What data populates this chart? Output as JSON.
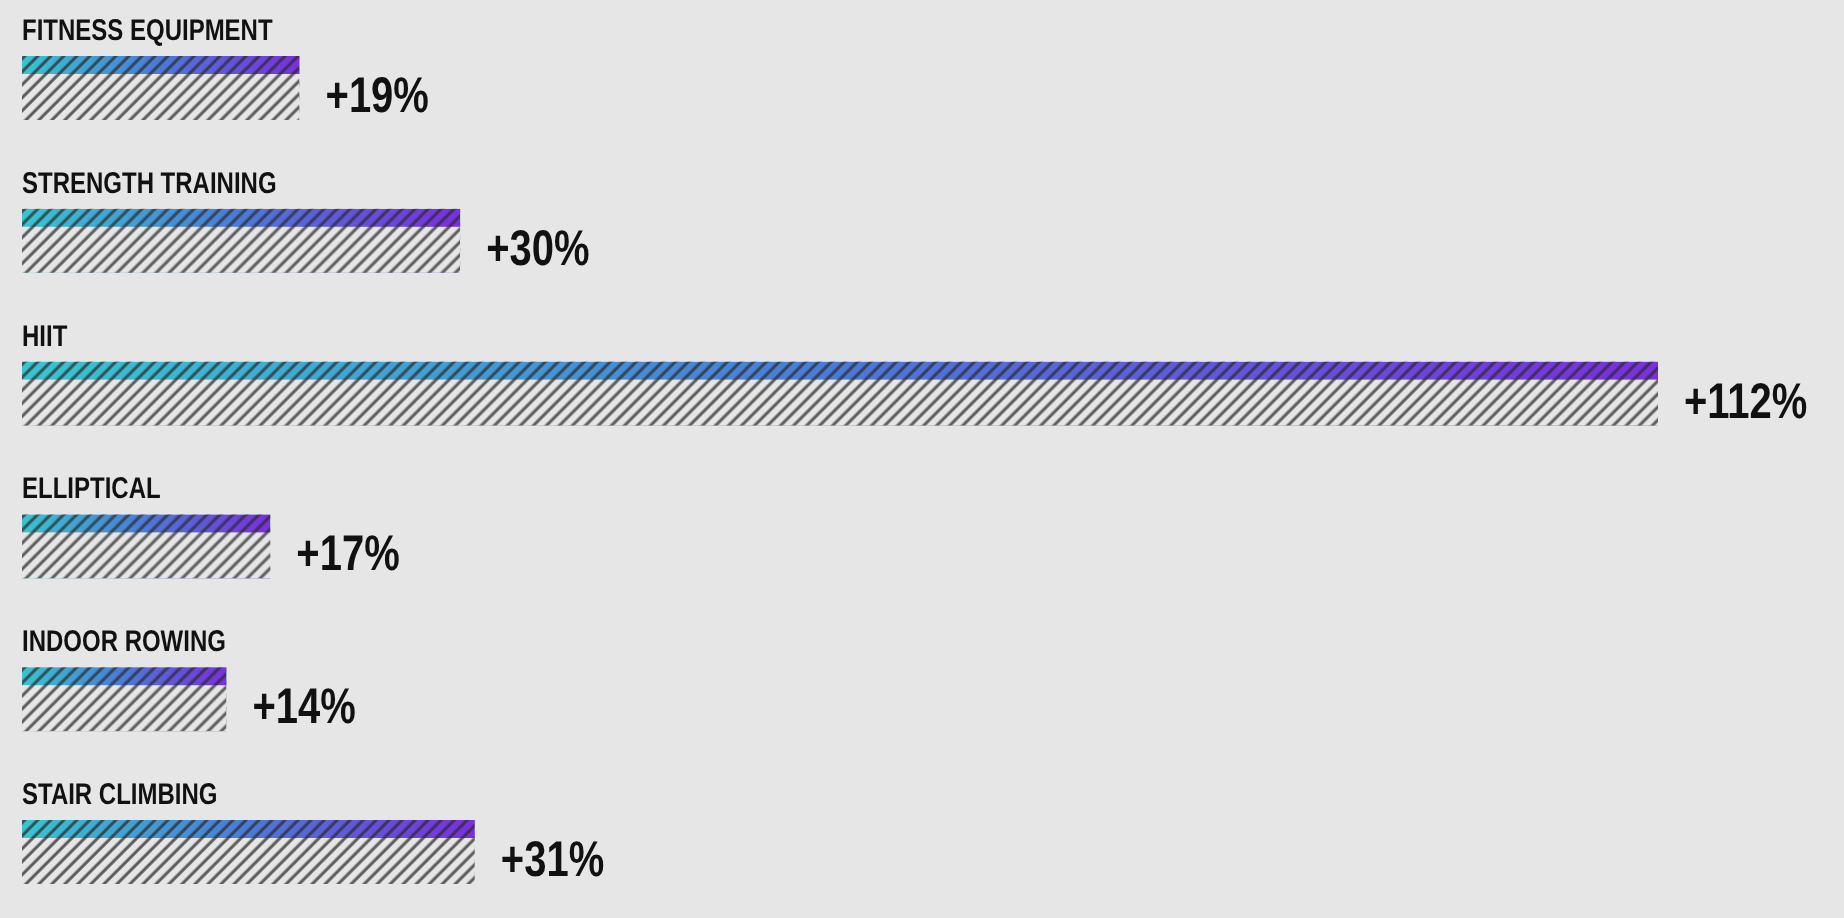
{
  "chart_data": {
    "type": "bar",
    "orientation": "horizontal",
    "tick_labels": "y",
    "categories": [
      "FITNESS EQUIPMENT",
      "STRENGTH TRAINING",
      "HIIT",
      "ELLIPTICAL",
      "INDOOR ROWING",
      "STAIR CLIMBING"
    ],
    "series": [
      {
        "color": "#7b2ee0",
        "values": [
          19,
          30,
          112,
          17,
          14,
          31
        ],
        "value_labels": [
          "+19%",
          "+30%",
          "+112%",
          "+17%",
          "+14%",
          "+31%"
        ]
      }
    ]
  }
}
